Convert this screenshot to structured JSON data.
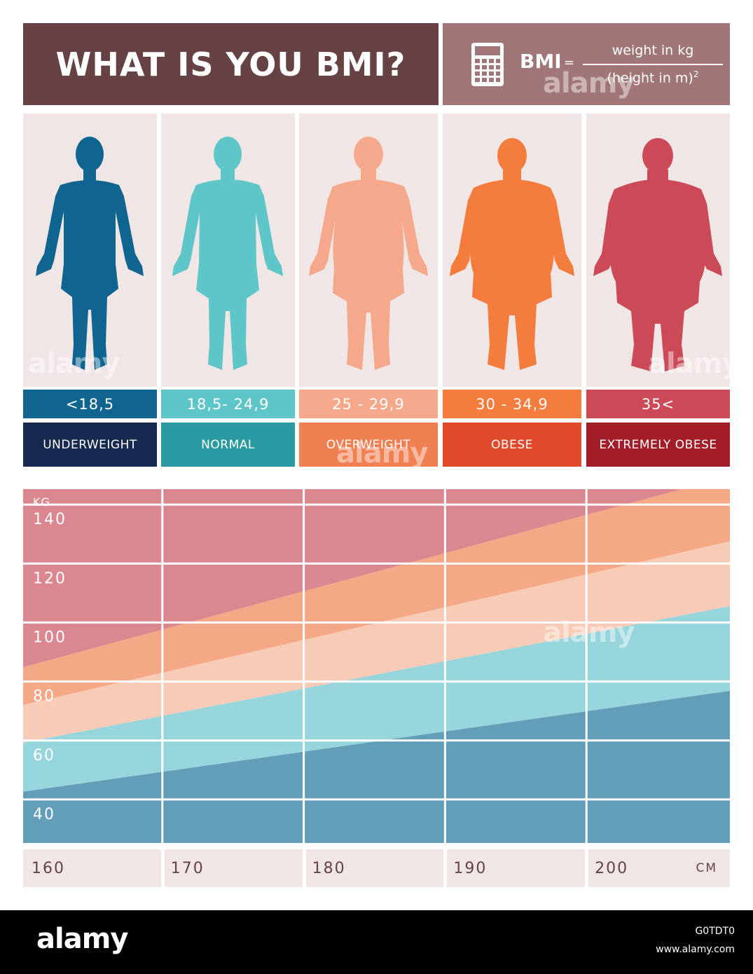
{
  "header": {
    "title": "WHAT IS YOU BMI?",
    "formula_label": "BMI",
    "formula_eq": "=",
    "numerator": "weight in kg",
    "denominator": "(height in m)",
    "exponent": "2"
  },
  "categories": [
    {
      "range": "<18,5",
      "label": "UNDERWEIGHT",
      "figure_color": "#0f6490",
      "range_color": "#0f6490",
      "label_color": "#16294e"
    },
    {
      "range": "18,5- 24,9",
      "label": "NORMAL",
      "figure_color": "#5ec6c8",
      "range_color": "#5ec6c8",
      "label_color": "#2a9aa0"
    },
    {
      "range": "25 - 29,9",
      "label": "OVERWEIGHT",
      "figure_color": "#f5a98a",
      "range_color": "#f5a98a",
      "label_color": "#f07f52"
    },
    {
      "range": "30 - 34,9",
      "label": "OBESE",
      "figure_color": "#f47c3c",
      "range_color": "#f47c3c",
      "label_color": "#e2482a"
    },
    {
      "range": "35<",
      "label": "EXTREMELY OBESE",
      "figure_color": "#cc4a57",
      "range_color": "#cc4a57",
      "label_color": "#a21d27"
    }
  ],
  "chart": {
    "y_unit": "KG",
    "y_ticks": [
      "140",
      "120",
      "100",
      "80",
      "60",
      "40"
    ],
    "x_ticks": [
      "160",
      "170",
      "180",
      "190",
      "200"
    ],
    "x_unit": "CM",
    "band_colors": [
      "#629eb8",
      "#97d5dc",
      "#f8cbb6",
      "#f4a885",
      "#da8790"
    ]
  },
  "chart_data": {
    "type": "area",
    "xlabel": "CM",
    "ylabel": "KG",
    "x_ticks": [
      160,
      170,
      180,
      190,
      200
    ],
    "y_ticks": [
      40,
      60,
      80,
      100,
      120,
      140
    ],
    "xlim": [
      160,
      210
    ],
    "ylim": [
      30,
      150
    ],
    "boundaries": [
      {
        "bmi": 18.5,
        "x": [
          160,
          210
        ],
        "y": [
          47.4,
          81.6
        ]
      },
      {
        "bmi": 25,
        "x": [
          160,
          210
        ],
        "y": [
          64.0,
          110.3
        ]
      },
      {
        "bmi": 30,
        "x": [
          160,
          210
        ],
        "y": [
          76.8,
          132.3
        ]
      },
      {
        "bmi": 35,
        "x": [
          160,
          210
        ],
        "y": [
          89.6,
          154.4
        ]
      }
    ],
    "grid": true
  },
  "footer": {
    "logo": "alamy",
    "image_id": "G0TDT0",
    "url": "www.alamy.com"
  },
  "watermark": "alamy"
}
